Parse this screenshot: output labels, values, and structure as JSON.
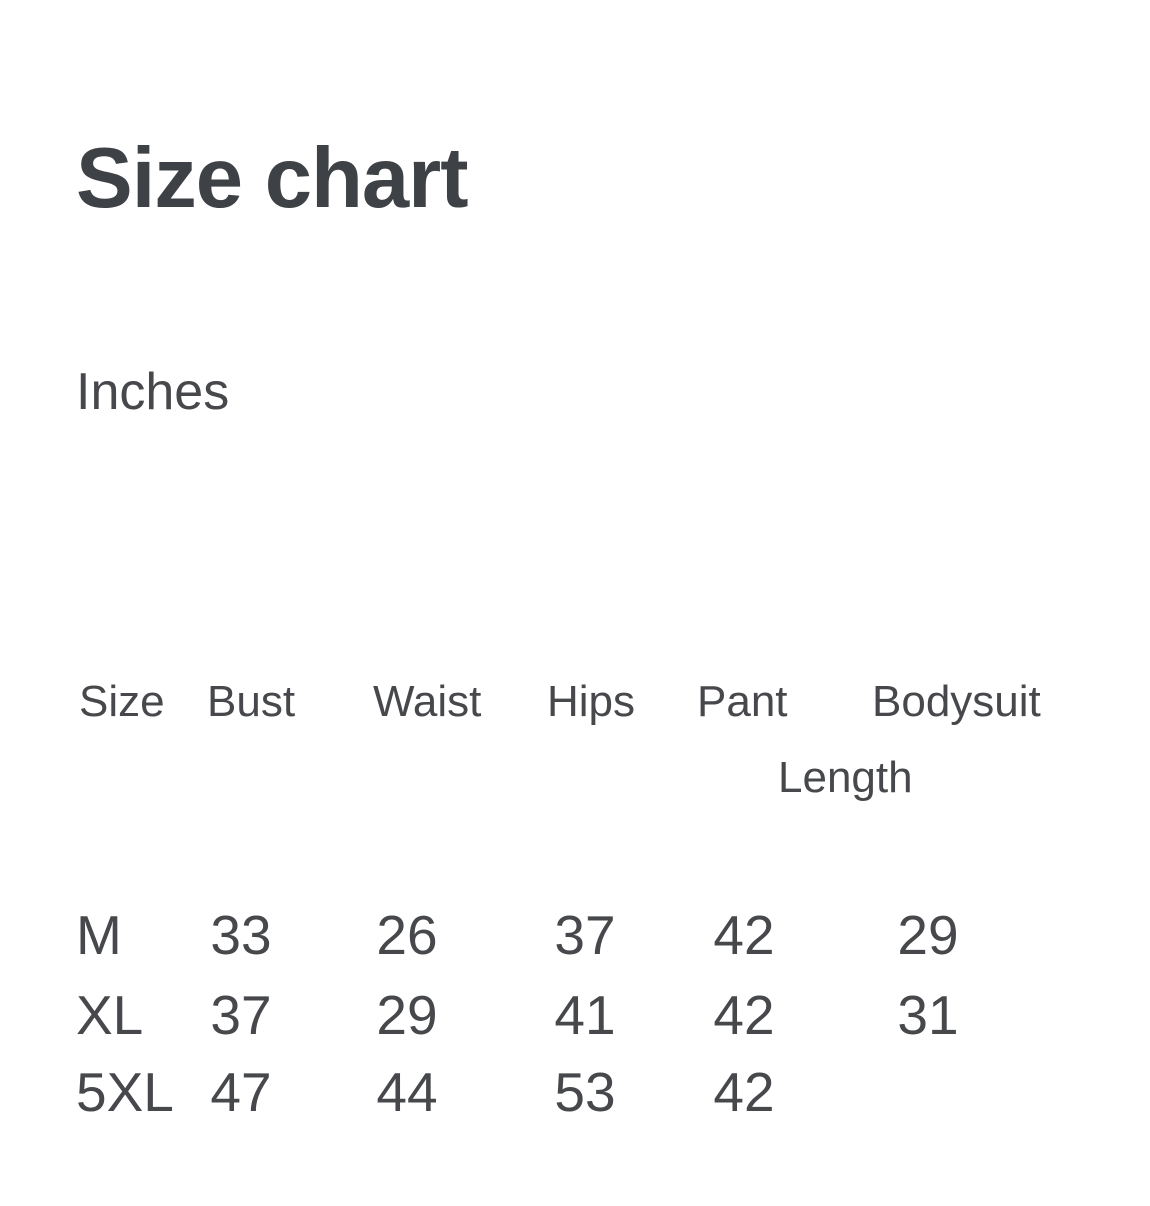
{
  "page": {
    "title": "Size chart",
    "unit_label": "Inches"
  },
  "theme": {
    "background": "#ffffff",
    "title_color": "#3e4145",
    "text_color": "#46484b"
  },
  "size_table": {
    "headers": {
      "size": "Size",
      "bust": "Bust",
      "waist": "Waist",
      "hips": "Hips",
      "pant": "Pant",
      "bodysuit_line1": "Bodysuit",
      "bodysuit_line2": "Length"
    },
    "rows": [
      {
        "size": "M",
        "bust": "33",
        "waist": "26",
        "hips": "37",
        "pant": "42",
        "bodysuit_length": "29"
      },
      {
        "size": "XL",
        "bust": "37",
        "waist": "29",
        "hips": "41",
        "pant": "42",
        "bodysuit_length": "31"
      },
      {
        "size": "5XL",
        "bust": "47",
        "waist": "44",
        "hips": "53",
        "pant": "42",
        "bodysuit_length": ""
      }
    ]
  }
}
